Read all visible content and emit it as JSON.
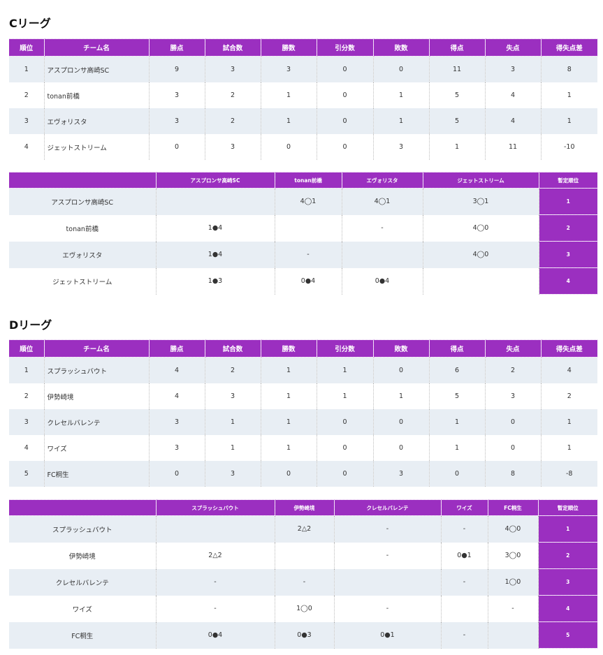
{
  "leagueC": {
    "title": "Cリーグ",
    "standings_headers": [
      "順位",
      "チーム名",
      "勝点",
      "試合数",
      "勝数",
      "引分数",
      "敗数",
      "得点",
      "失点",
      "得失点差"
    ],
    "standings": [
      [
        "1",
        "アスプロンサ高崎SC",
        "9",
        "3",
        "3",
        "0",
        "0",
        "11",
        "3",
        "8"
      ],
      [
        "2",
        "tonan前橋",
        "3",
        "2",
        "1",
        "0",
        "1",
        "5",
        "4",
        "1"
      ],
      [
        "3",
        "エヴォリスタ",
        "3",
        "2",
        "1",
        "0",
        "1",
        "5",
        "4",
        "1"
      ],
      [
        "4",
        "ジェットストリーム",
        "0",
        "3",
        "0",
        "0",
        "3",
        "1",
        "11",
        "-10"
      ]
    ],
    "matrix_headers": [
      "",
      "アスプロンサ高崎SC",
      "tonan前橋",
      "エヴォリスタ",
      "ジェットストリーム",
      "暫定順位"
    ],
    "matrix": [
      [
        "アスプロンサ高崎SC",
        "",
        "4◯1",
        "4◯1",
        "3◯1",
        "1"
      ],
      [
        "tonan前橋",
        "1●4",
        "",
        "-",
        "4◯0",
        "2"
      ],
      [
        "エヴォリスタ",
        "1●4",
        "-",
        "",
        "4◯0",
        "3"
      ],
      [
        "ジェットストリーム",
        "1●3",
        "0●4",
        "0●4",
        "",
        "4"
      ]
    ]
  },
  "leagueD": {
    "title": "Dリーグ",
    "standings_headers": [
      "順位",
      "チーム名",
      "勝点",
      "試合数",
      "勝数",
      "引分数",
      "敗数",
      "得点",
      "失点",
      "得失点差"
    ],
    "standings": [
      [
        "1",
        "スプラッシュバウト",
        "4",
        "2",
        "1",
        "1",
        "0",
        "6",
        "2",
        "4"
      ],
      [
        "2",
        "伊勢崎境",
        "4",
        "3",
        "1",
        "1",
        "1",
        "5",
        "3",
        "2"
      ],
      [
        "3",
        "クレセルバレンテ",
        "3",
        "1",
        "1",
        "0",
        "0",
        "1",
        "0",
        "1"
      ],
      [
        "4",
        "ワイズ",
        "3",
        "1",
        "1",
        "0",
        "0",
        "1",
        "0",
        "1"
      ],
      [
        "5",
        "FC桐生",
        "0",
        "3",
        "0",
        "0",
        "3",
        "0",
        "8",
        "-8"
      ]
    ],
    "matrix_headers": [
      "",
      "スプラッシュバウト",
      "伊勢崎境",
      "クレセルバレンテ",
      "ワイズ",
      "FC桐生",
      "暫定順位"
    ],
    "matrix": [
      [
        "スプラッシュバウト",
        "",
        "2△2",
        "-",
        "-",
        "4◯0",
        "1"
      ],
      [
        "伊勢崎境",
        "2△2",
        "",
        "-",
        "0●1",
        "3◯0",
        "2"
      ],
      [
        "クレセルバレンテ",
        "-",
        "-",
        "",
        "-",
        "1◯0",
        "3"
      ],
      [
        "ワイズ",
        "-",
        "1◯0",
        "-",
        "",
        "-",
        "4"
      ],
      [
        "FC桐生",
        "0●4",
        "0●3",
        "0●1",
        "-",
        "",
        "5"
      ]
    ]
  }
}
